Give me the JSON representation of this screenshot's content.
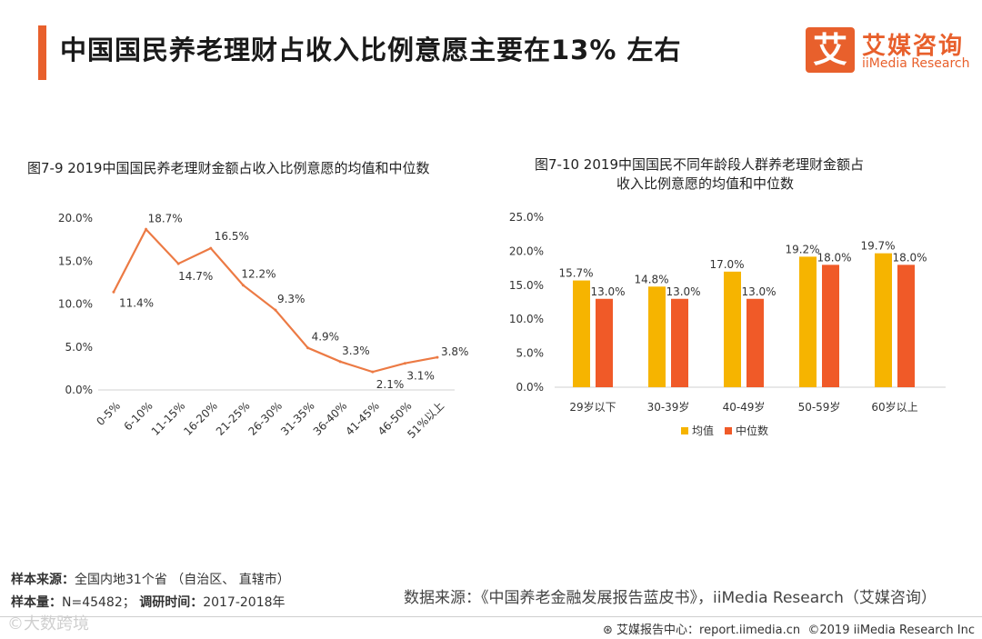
{
  "header": {
    "title": "中国国民养老理财占收入比例意愿主要在13% 左右",
    "logo_mark": "艾",
    "logo_cn": "艾媒咨询",
    "logo_en": "iiMedia Research"
  },
  "colors": {
    "accent": "#e8602c",
    "line": "#ec7a44",
    "mean": "#f6b400",
    "median": "#f05a28"
  },
  "chart_data": [
    {
      "type": "line",
      "title": "图7-9 2019中国国民养老理财金额占收入比例意愿的均值和中位数",
      "categories": [
        "0-5%",
        "6-10%",
        "11-15%",
        "16-20%",
        "21-25%",
        "26-30%",
        "31-35%",
        "36-40%",
        "41-45%",
        "46-50%",
        "51%以上"
      ],
      "values": [
        11.4,
        18.7,
        14.7,
        16.5,
        12.2,
        9.3,
        4.9,
        3.3,
        2.1,
        3.1,
        3.8
      ],
      "labels": [
        "11.4%",
        "18.7%",
        "14.7%",
        "16.5%",
        "12.2%",
        "9.3%",
        "4.9%",
        "3.3%",
        "2.1%",
        "3.1%",
        "3.8%"
      ],
      "yticks": [
        "0.0%",
        "5.0%",
        "10.0%",
        "15.0%",
        "20.0%"
      ],
      "ylim": [
        0,
        20
      ]
    },
    {
      "type": "bar",
      "title_line1": "图7-10 2019中国国民不同年龄段人群养老理财金额占",
      "title_line2": "收入比例意愿的均值和中位数",
      "categories": [
        "29岁以下",
        "30-39岁",
        "40-49岁",
        "50-59岁",
        "60岁以上"
      ],
      "series": [
        {
          "name": "均值",
          "values": [
            15.7,
            14.8,
            17.0,
            19.2,
            19.7
          ],
          "labels": [
            "15.7%",
            "14.8%",
            "17.0%",
            "19.2%",
            "19.7%"
          ]
        },
        {
          "name": "中位数",
          "values": [
            13.0,
            13.0,
            13.0,
            18.0,
            18.0
          ],
          "labels": [
            "13.0%",
            "13.0%",
            "13.0%",
            "18.0%",
            "18.0%"
          ]
        }
      ],
      "yticks": [
        "0.0%",
        "5.0%",
        "10.0%",
        "15.0%",
        "20.0%",
        "25.0%"
      ],
      "ylim": [
        0,
        25
      ]
    }
  ],
  "footer": {
    "sample_source_label": "样本来源：",
    "sample_source": "全国内地31个省 （自治区、 直辖市）",
    "sample_size_label": "样本量：",
    "sample_size": "N=45482；",
    "survey_time_label": "调研时间：",
    "survey_time": "2017-2018年",
    "data_source": "数据来源：《中国养老金融发展报告蓝皮书》，iiMedia Research（艾媒咨询）",
    "report_center": "艾媒报告中心：report.iimedia.cn",
    "copyright": "©2019  iiMedia Research  Inc",
    "watermark": "©大数跨境"
  }
}
